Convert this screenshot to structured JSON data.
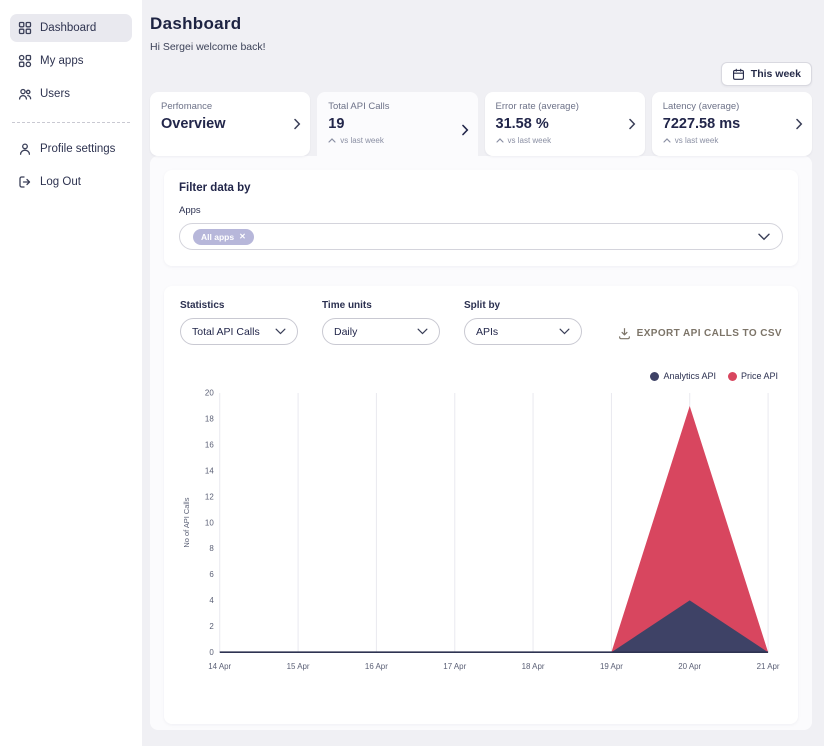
{
  "sidebar": {
    "items": [
      {
        "label": "Dashboard",
        "active": true
      },
      {
        "label": "My apps",
        "active": false
      },
      {
        "label": "Users",
        "active": false
      },
      {
        "label": "Profile settings",
        "active": false
      },
      {
        "label": "Log Out",
        "active": false
      }
    ]
  },
  "header": {
    "title": "Dashboard",
    "subtitle": "Hi Sergei welcome back!",
    "period_button": "This week"
  },
  "stat_cards": [
    {
      "label": "Perfomance",
      "value": "Overview",
      "note": ""
    },
    {
      "label": "Total API Calls",
      "value": "19",
      "note": "vs last week",
      "selected": true
    },
    {
      "label": "Error rate (average)",
      "value": "31.58 %",
      "note": "vs last week"
    },
    {
      "label": "Latency (average)",
      "value": "7227.58 ms",
      "note": "vs last week"
    }
  ],
  "filter": {
    "title": "Filter data by",
    "apps_label": "Apps",
    "chip_label": "All apps"
  },
  "controls": {
    "statistics_label": "Statistics",
    "statistics_value": "Total API Calls",
    "time_units_label": "Time units",
    "time_units_value": "Daily",
    "split_by_label": "Split by",
    "split_by_value": "APIs",
    "export_label": "EXPORT API CALLS TO CSV"
  },
  "colors": {
    "accent_navy": "#3e4266",
    "accent_red": "#d8465f",
    "chip": "#b7b7da"
  },
  "chart_data": {
    "type": "area",
    "stacked": true,
    "x": [
      "14 Apr",
      "15 Apr",
      "16 Apr",
      "17 Apr",
      "18 Apr",
      "19 Apr",
      "20 Apr",
      "21 Apr"
    ],
    "series": [
      {
        "name": "Analytics API",
        "color": "#3e4266",
        "values": [
          0,
          0,
          0,
          0,
          0,
          0,
          4,
          0
        ]
      },
      {
        "name": "Price API",
        "color": "#d8465f",
        "values": [
          0,
          0,
          0,
          0,
          0,
          0,
          15,
          0
        ]
      }
    ],
    "ylabel": "No of API Calls",
    "ylim": [
      0,
      20
    ],
    "ytick_step": 2,
    "grid": "vertical",
    "legend_position": "top-right"
  }
}
